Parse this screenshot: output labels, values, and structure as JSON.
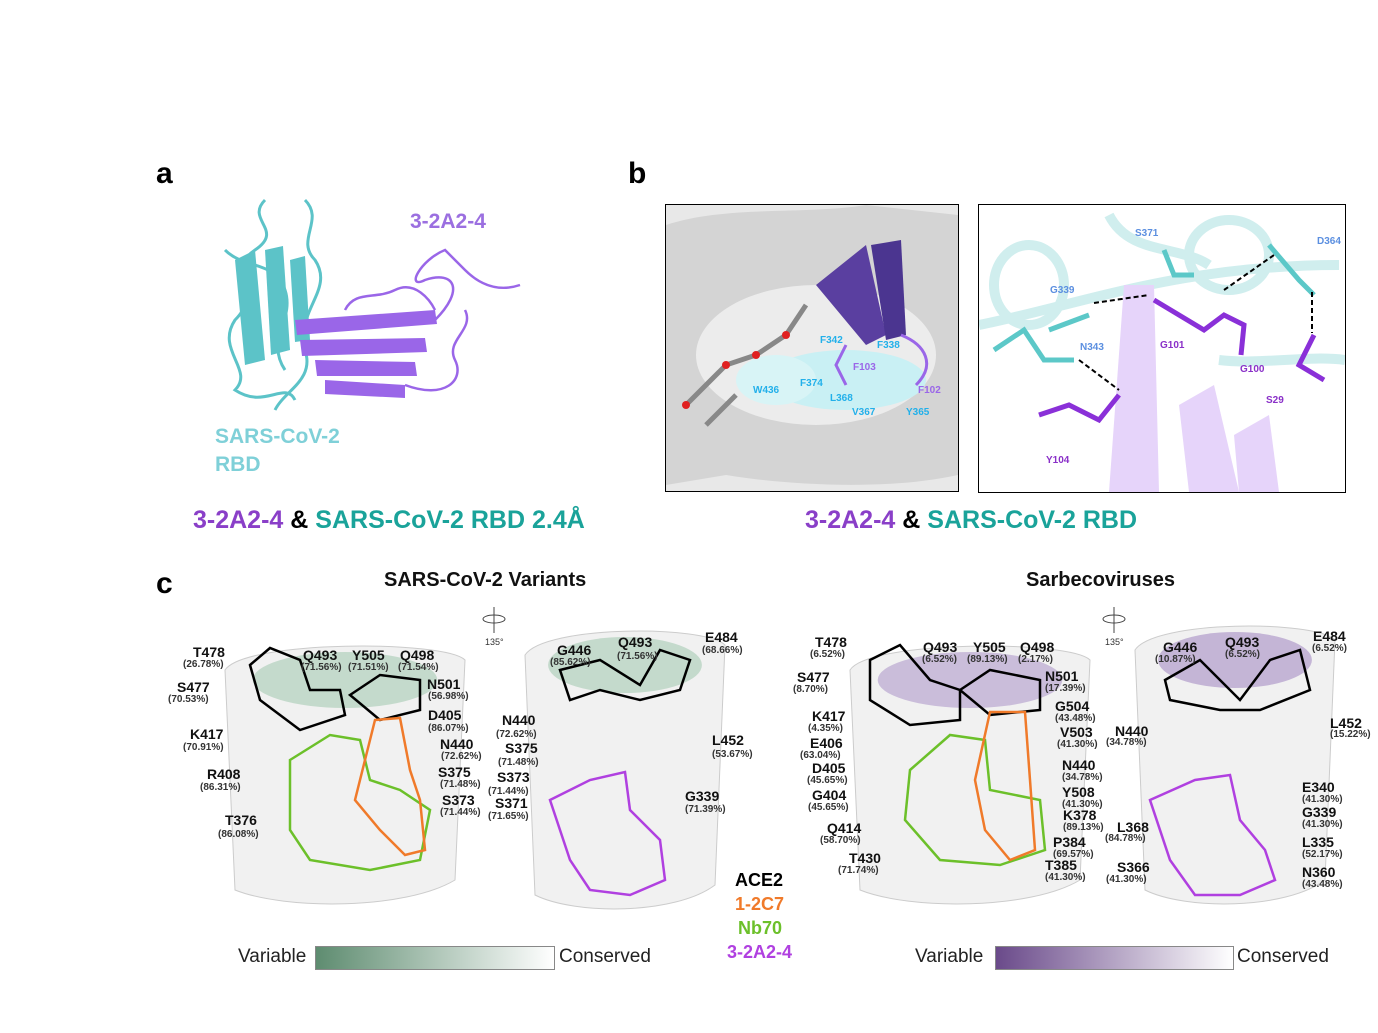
{
  "panel_labels": {
    "a": "a",
    "b": "b",
    "c": "c"
  },
  "colors": {
    "purple": "#8a3fc8",
    "teal": "#1aa39a",
    "cyan_label": "#1ab0e0",
    "ace2": "#000000",
    "c127": "#f07a2a",
    "nb70": "#6cc02a",
    "a324": "#b040e0",
    "variants_dark": "#5e8c70",
    "sarbeco_dark": "#6a4a8a"
  },
  "panel_a": {
    "antibody_label": "3-2A2-4",
    "rbd_label_line1": "SARS-CoV-2",
    "rbd_label_line2": "RBD",
    "caption": {
      "part1": "3-2A2-4",
      "amp": "&",
      "part2": "SARS-CoV-2 RBD 2.4Å"
    }
  },
  "panel_b": {
    "left_labels": {
      "F342": "F342",
      "F338": "F338",
      "F103": "F103",
      "W436": "W436",
      "F374": "F374",
      "L368": "L368",
      "V367": "V367",
      "Y365": "Y365",
      "F102": "F102"
    },
    "right_labels": {
      "S371": "S371",
      "D364": "D364",
      "G339": "G339",
      "N343": "N343",
      "G101": "G101",
      "G100": "G100",
      "S29": "S29",
      "Y104": "Y104"
    },
    "caption": {
      "part1": "3-2A2-4",
      "amp": "&",
      "part2": "SARS-CoV-2 RBD"
    }
  },
  "panel_c": {
    "variants_title": "SARS-CoV-2 Variants",
    "sarbeco_title": "Sarbecoviruses",
    "rotation_label": "135°",
    "variants_front": [
      {
        "res": "T478",
        "pct": "(26.78%)"
      },
      {
        "res": "S477",
        "pct": "(70.53%)"
      },
      {
        "res": "K417",
        "pct": "(70.91%)"
      },
      {
        "res": "R408",
        "pct": "(86.31%)"
      },
      {
        "res": "T376",
        "pct": "(86.08%)"
      },
      {
        "res": "Q493",
        "pct": "(71.56%)"
      },
      {
        "res": "Y505",
        "pct": "(71.51%)"
      },
      {
        "res": "Q498",
        "pct": "(71.54%)"
      },
      {
        "res": "N501",
        "pct": "(56.98%)"
      },
      {
        "res": "D405",
        "pct": "(86.07%)"
      },
      {
        "res": "N440",
        "pct": "(72.62%)"
      },
      {
        "res": "S375",
        "pct": "(71.48%)"
      },
      {
        "res": "S373",
        "pct": "(71.44%)"
      }
    ],
    "variants_back": [
      {
        "res": "G446",
        "pct": "(85.62%)"
      },
      {
        "res": "Q493",
        "pct": "(71.56%)"
      },
      {
        "res": "E484",
        "pct": "(68.66%)"
      },
      {
        "res": "N440",
        "pct": "(72.62%)"
      },
      {
        "res": "S375",
        "pct": "(71.48%)"
      },
      {
        "res": "S373",
        "pct": "(71.44%)"
      },
      {
        "res": "S371",
        "pct": "(71.65%)"
      },
      {
        "res": "L452",
        "pct": "(53.67%)"
      },
      {
        "res": "G339",
        "pct": "(71.39%)"
      }
    ],
    "sarbeco_front": [
      {
        "res": "T478",
        "pct": "(6.52%)"
      },
      {
        "res": "S477",
        "pct": "(8.70%)"
      },
      {
        "res": "K417",
        "pct": "(4.35%)"
      },
      {
        "res": "E406",
        "pct": "(63.04%)"
      },
      {
        "res": "D405",
        "pct": "(45.65%)"
      },
      {
        "res": "G404",
        "pct": "(45.65%)"
      },
      {
        "res": "Q414",
        "pct": "(58.70%)"
      },
      {
        "res": "T430",
        "pct": "(71.74%)"
      },
      {
        "res": "Q493",
        "pct": "(6.52%)"
      },
      {
        "res": "Y505",
        "pct": "(89.13%)"
      },
      {
        "res": "Q498",
        "pct": "(2.17%)"
      },
      {
        "res": "N501",
        "pct": "(17.39%)"
      },
      {
        "res": "G504",
        "pct": "(43.48%)"
      },
      {
        "res": "V503",
        "pct": "(41.30%)"
      },
      {
        "res": "N440",
        "pct": "(34.78%)"
      },
      {
        "res": "Y508",
        "pct": "(41.30%)"
      },
      {
        "res": "K378",
        "pct": "(89.13%)"
      },
      {
        "res": "P384",
        "pct": "(69.57%)"
      },
      {
        "res": "T385",
        "pct": "(41.30%)"
      }
    ],
    "sarbeco_back": [
      {
        "res": "G446",
        "pct": "(10.87%)"
      },
      {
        "res": "Q493",
        "pct": "(6.52%)"
      },
      {
        "res": "E484",
        "pct": "(6.52%)"
      },
      {
        "res": "N440",
        "pct": "(34.78%)"
      },
      {
        "res": "L452",
        "pct": "(15.22%)"
      },
      {
        "res": "E340",
        "pct": "(41.30%)"
      },
      {
        "res": "G339",
        "pct": "(41.30%)"
      },
      {
        "res": "L368",
        "pct": "(84.78%)"
      },
      {
        "res": "L335",
        "pct": "(52.17%)"
      },
      {
        "res": "S366",
        "pct": "(41.30%)"
      },
      {
        "res": "N360",
        "pct": "(43.48%)"
      }
    ],
    "legend": {
      "ace2": "ACE2",
      "c127": "1-2C7",
      "nb70": "Nb70",
      "a324": "3-2A2-4"
    },
    "colorbar_variants": {
      "low": "Variable",
      "high": "Conserved"
    },
    "colorbar_sarbeco": {
      "low": "Variable",
      "high": "Conserved"
    }
  }
}
